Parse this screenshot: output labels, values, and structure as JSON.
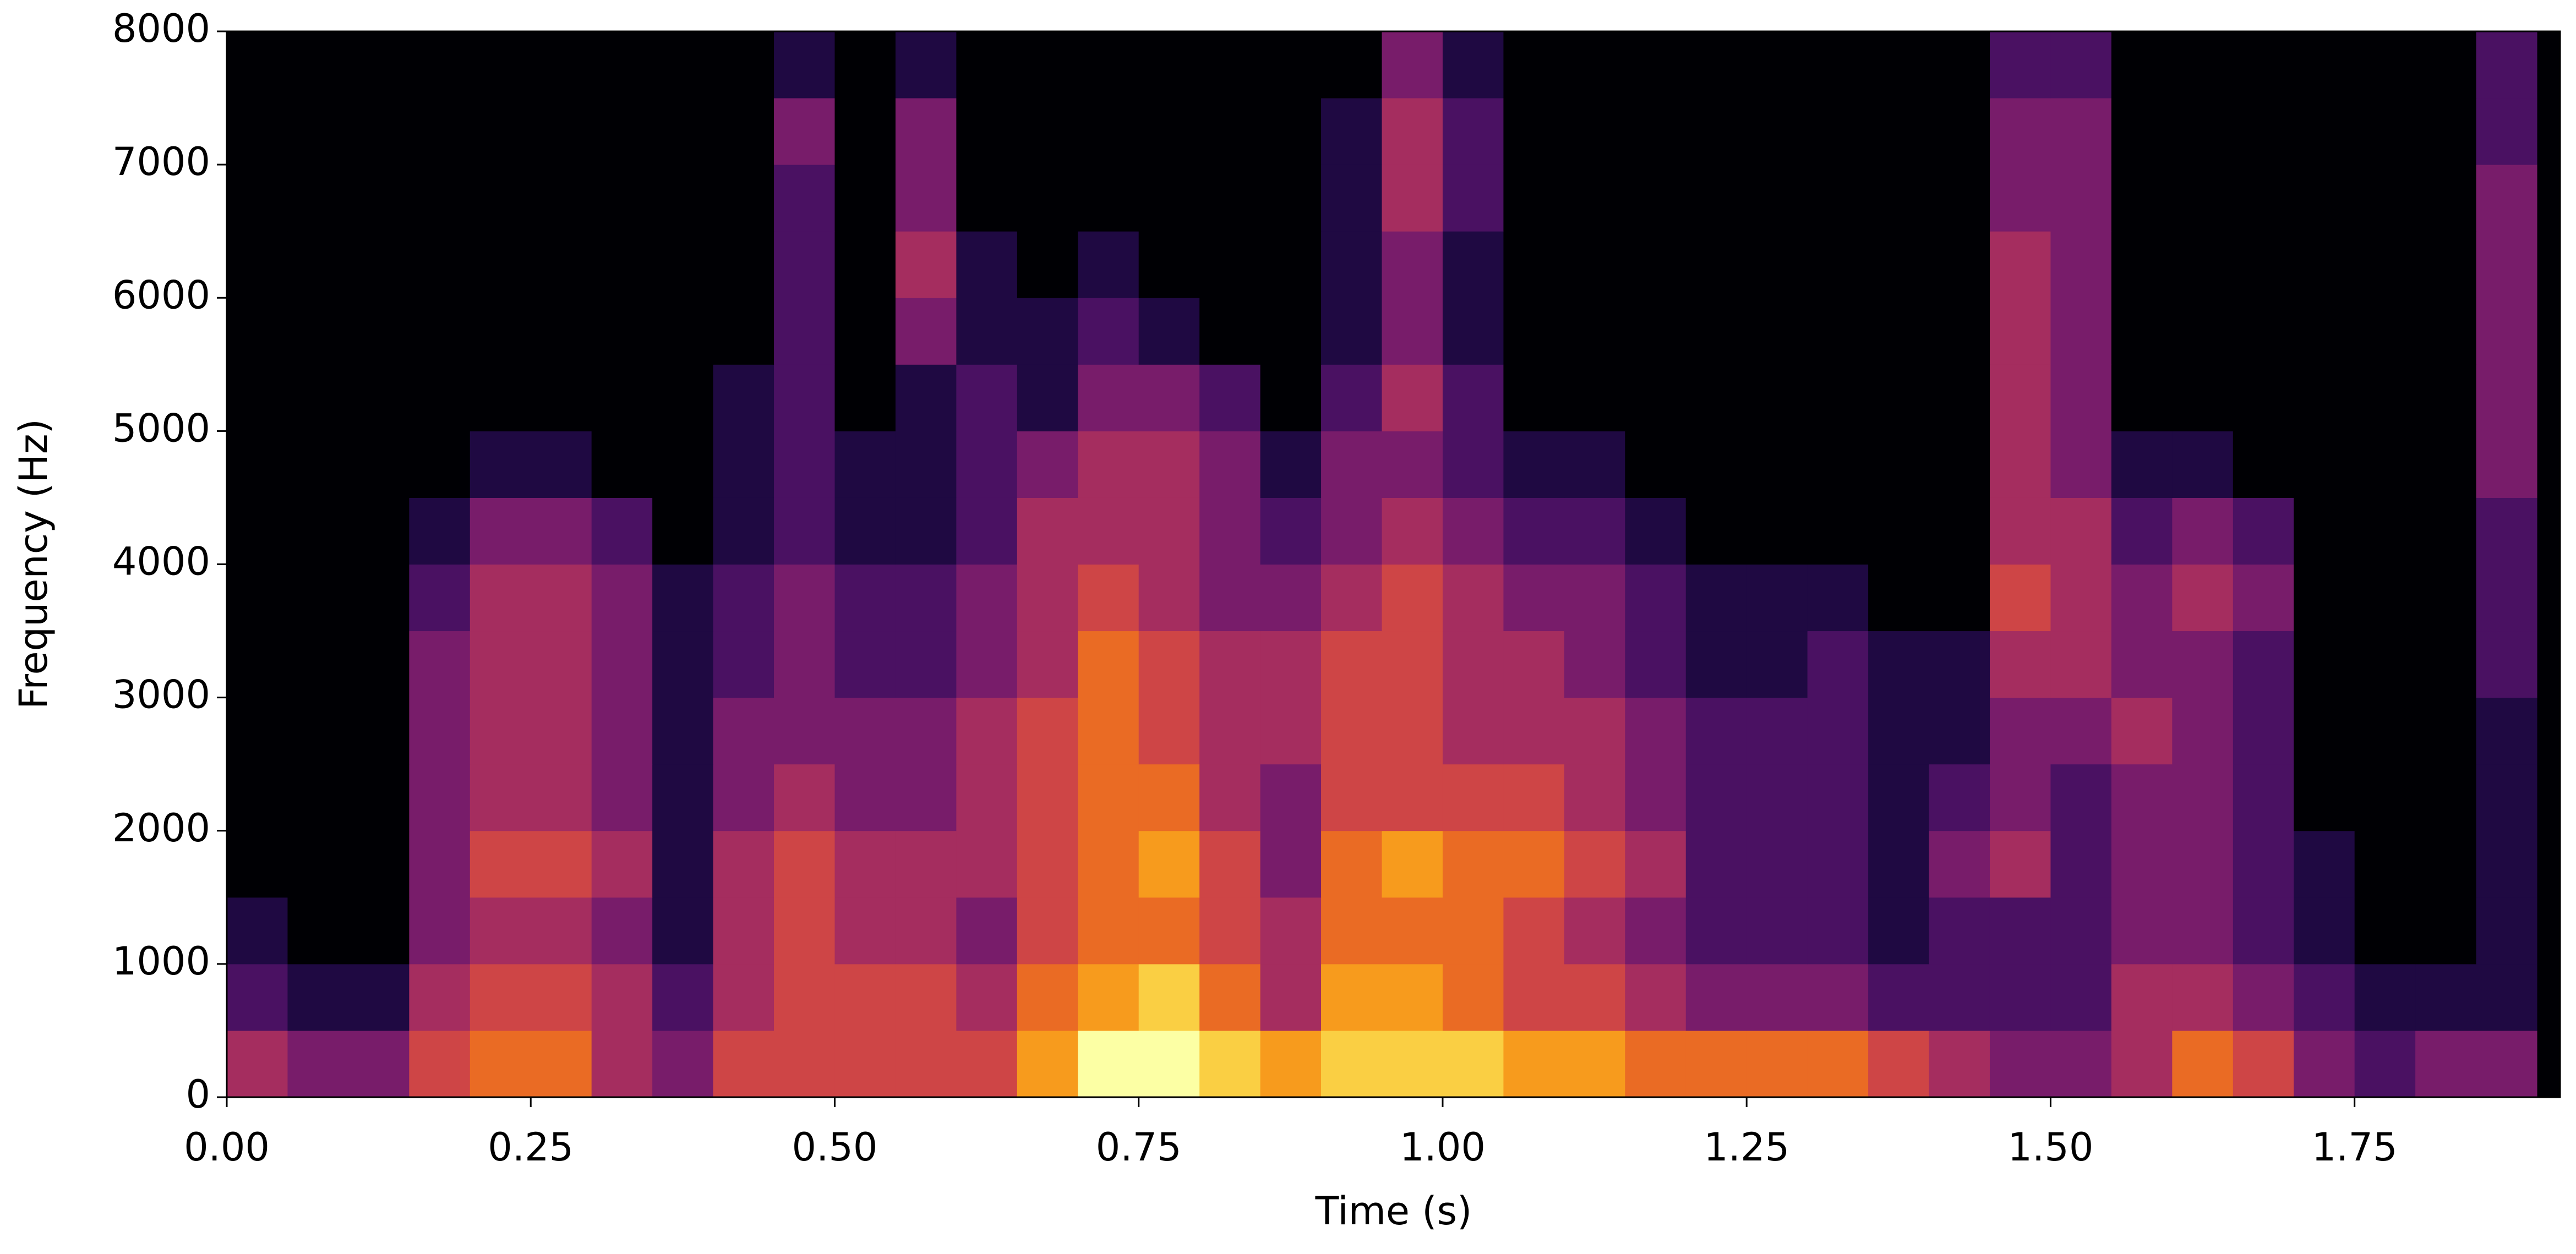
{
  "chart_data": {
    "type": "heatmap",
    "colormap": "inferno",
    "xlabel": "Time (s)",
    "ylabel": "Frequency (Hz)",
    "xlim": [
      0,
      1.919
    ],
    "ylim": [
      0,
      8000
    ],
    "xticks": [
      {
        "value": 0,
        "label": "0.00"
      },
      0.25,
      {
        "value": 0.5,
        "label": "0.50"
      },
      0.75,
      {
        "value": 1,
        "label": "1.00"
      },
      1.25,
      {
        "value": 1.5,
        "label": "1.50"
      },
      1.75
    ],
    "yticks": [
      0,
      1000,
      2000,
      3000,
      4000,
      5000,
      6000,
      7000,
      8000
    ],
    "x": [
      0.025,
      0.075,
      0.125,
      0.175,
      0.225,
      0.275,
      0.325,
      0.375,
      0.425,
      0.475,
      0.525,
      0.575,
      0.625,
      0.675,
      0.725,
      0.775,
      0.825,
      0.875,
      0.925,
      0.975,
      1.025,
      1.075,
      1.125,
      1.175,
      1.225,
      1.275,
      1.325,
      1.375,
      1.425,
      1.475,
      1.525,
      1.575,
      1.625,
      1.675,
      1.725,
      1.775,
      1.825,
      1.875
    ],
    "y": [
      250,
      750,
      1250,
      1750,
      2250,
      2750,
      3250,
      3750,
      4250,
      4750,
      5250,
      5750,
      6250,
      6750,
      7250,
      7750
    ],
    "z": [
      [
        4,
        3,
        3,
        5,
        6,
        6,
        4,
        3,
        5,
        5,
        5,
        5,
        5,
        7,
        9,
        9,
        8,
        7,
        8,
        8,
        8,
        7,
        7,
        6,
        6,
        6,
        6,
        5,
        4,
        3,
        3,
        4,
        6,
        5,
        3,
        2,
        3,
        3
      ],
      [
        2,
        1,
        1,
        4,
        5,
        5,
        4,
        2,
        4,
        5,
        5,
        5,
        4,
        6,
        7,
        8,
        6,
        4,
        7,
        7,
        6,
        5,
        5,
        4,
        3,
        3,
        3,
        2,
        2,
        2,
        2,
        4,
        4,
        3,
        2,
        1,
        1,
        1
      ],
      [
        1,
        0,
        0,
        3,
        4,
        4,
        3,
        1,
        4,
        5,
        4,
        4,
        3,
        5,
        6,
        6,
        5,
        4,
        6,
        6,
        6,
        5,
        4,
        3,
        2,
        2,
        2,
        1,
        2,
        2,
        2,
        3,
        3,
        2,
        1,
        0,
        0,
        1
      ],
      [
        0,
        0,
        0,
        3,
        5,
        5,
        4,
        1,
        4,
        5,
        4,
        4,
        4,
        5,
        6,
        7,
        5,
        3,
        6,
        7,
        6,
        6,
        5,
        4,
        2,
        2,
        2,
        1,
        3,
        4,
        2,
        3,
        3,
        2,
        1,
        0,
        0,
        1
      ],
      [
        0,
        0,
        0,
        3,
        4,
        4,
        3,
        1,
        3,
        4,
        3,
        3,
        4,
        5,
        6,
        6,
        4,
        3,
        5,
        5,
        5,
        5,
        4,
        3,
        2,
        2,
        2,
        1,
        2,
        3,
        2,
        3,
        3,
        2,
        0,
        0,
        0,
        1
      ],
      [
        0,
        0,
        0,
        3,
        4,
        4,
        3,
        1,
        3,
        3,
        3,
        3,
        4,
        5,
        6,
        5,
        4,
        4,
        5,
        5,
        4,
        4,
        4,
        3,
        2,
        2,
        2,
        1,
        1,
        3,
        3,
        4,
        3,
        2,
        0,
        0,
        0,
        1
      ],
      [
        0,
        0,
        0,
        3,
        4,
        4,
        3,
        1,
        2,
        3,
        2,
        2,
        3,
        4,
        6,
        5,
        4,
        4,
        5,
        5,
        4,
        4,
        3,
        2,
        1,
        1,
        2,
        1,
        1,
        4,
        4,
        3,
        3,
        2,
        0,
        0,
        0,
        2
      ],
      [
        0,
        0,
        0,
        2,
        4,
        4,
        3,
        1,
        2,
        3,
        2,
        2,
        3,
        4,
        5,
        4,
        3,
        3,
        4,
        5,
        4,
        3,
        3,
        2,
        1,
        1,
        1,
        0,
        0,
        5,
        4,
        3,
        4,
        3,
        0,
        0,
        0,
        2
      ],
      [
        0,
        0,
        0,
        1,
        3,
        3,
        2,
        0,
        1,
        2,
        1,
        1,
        2,
        4,
        4,
        4,
        3,
        2,
        3,
        4,
        3,
        2,
        2,
        1,
        0,
        0,
        0,
        0,
        0,
        4,
        4,
        2,
        3,
        2,
        0,
        0,
        0,
        2
      ],
      [
        0,
        0,
        0,
        0,
        1,
        1,
        0,
        0,
        1,
        2,
        1,
        1,
        2,
        3,
        4,
        4,
        3,
        1,
        3,
        3,
        2,
        1,
        1,
        0,
        0,
        0,
        0,
        0,
        0,
        4,
        3,
        1,
        1,
        0,
        0,
        0,
        0,
        3
      ],
      [
        0,
        0,
        0,
        0,
        0,
        0,
        0,
        0,
        1,
        2,
        0,
        1,
        2,
        1,
        3,
        3,
        2,
        0,
        2,
        4,
        2,
        0,
        0,
        0,
        0,
        0,
        0,
        0,
        0,
        4,
        3,
        0,
        0,
        0,
        0,
        0,
        0,
        3
      ],
      [
        0,
        0,
        0,
        0,
        0,
        0,
        0,
        0,
        0,
        2,
        0,
        3,
        1,
        1,
        2,
        1,
        0,
        0,
        1,
        3,
        1,
        0,
        0,
        0,
        0,
        0,
        0,
        0,
        0,
        4,
        3,
        0,
        0,
        0,
        0,
        0,
        0,
        3
      ],
      [
        0,
        0,
        0,
        0,
        0,
        0,
        0,
        0,
        0,
        2,
        0,
        4,
        1,
        0,
        1,
        0,
        0,
        0,
        1,
        3,
        1,
        0,
        0,
        0,
        0,
        0,
        0,
        0,
        0,
        4,
        3,
        0,
        0,
        0,
        0,
        0,
        0,
        3
      ],
      [
        0,
        0,
        0,
        0,
        0,
        0,
        0,
        0,
        0,
        2,
        0,
        3,
        0,
        0,
        0,
        0,
        0,
        0,
        1,
        4,
        2,
        0,
        0,
        0,
        0,
        0,
        0,
        0,
        0,
        3,
        3,
        0,
        0,
        0,
        0,
        0,
        0,
        3
      ],
      [
        0,
        0,
        0,
        0,
        0,
        0,
        0,
        0,
        0,
        3,
        0,
        3,
        0,
        0,
        0,
        0,
        0,
        0,
        1,
        4,
        2,
        0,
        0,
        0,
        0,
        0,
        0,
        0,
        0,
        3,
        3,
        0,
        0,
        0,
        0,
        0,
        0,
        2
      ],
      [
        0,
        0,
        0,
        0,
        0,
        0,
        0,
        0,
        0,
        1,
        0,
        1,
        0,
        0,
        0,
        0,
        0,
        0,
        0,
        3,
        1,
        0,
        0,
        0,
        0,
        0,
        0,
        0,
        0,
        2,
        2,
        0,
        0,
        0,
        0,
        0,
        0,
        2
      ]
    ]
  }
}
